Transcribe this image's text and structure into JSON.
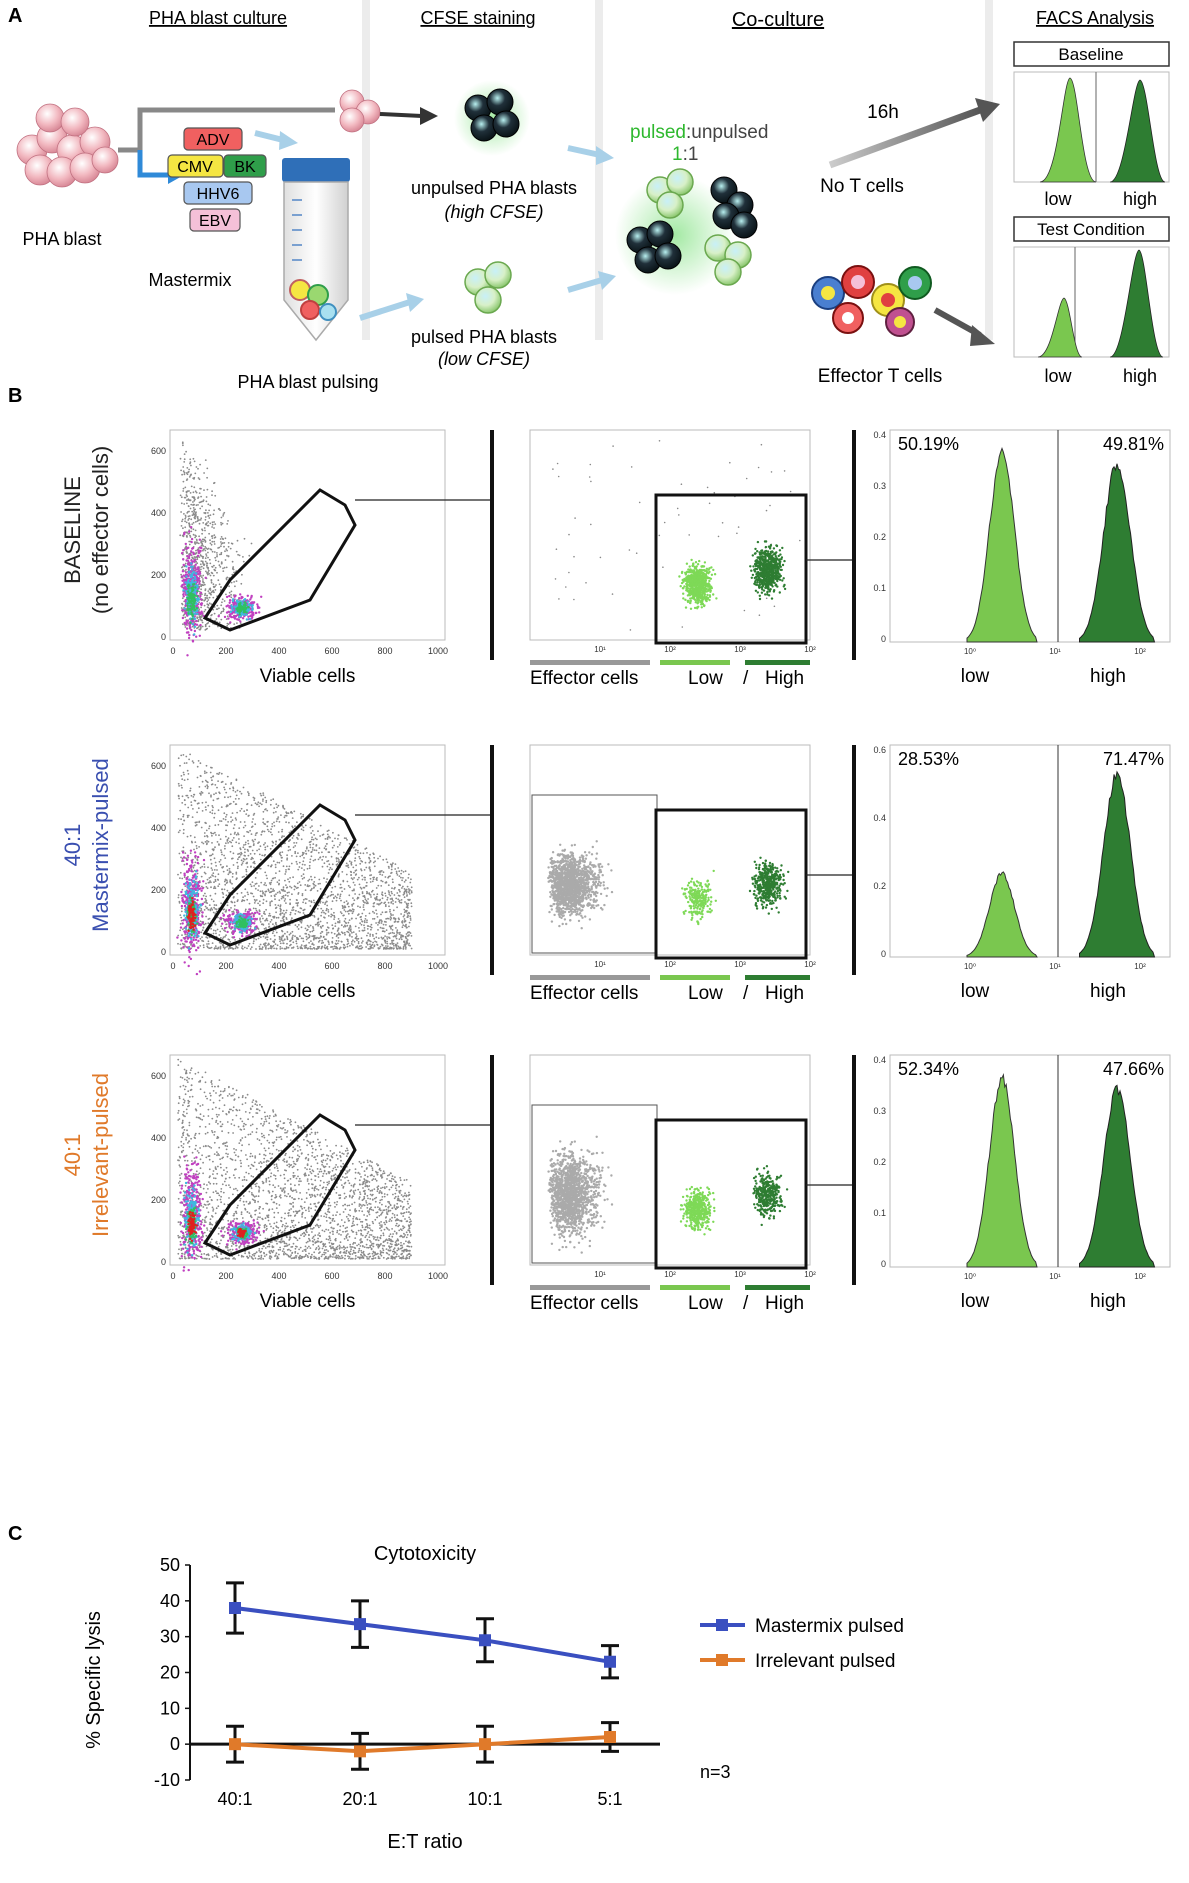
{
  "panelA": {
    "label": "A",
    "headers": [
      "PHA blast culture",
      "CFSE staining",
      "Co-culture",
      "FACS Analysis"
    ],
    "pha_blast": "PHA blast",
    "mastermix": "Mastermix",
    "viruses": [
      "ADV",
      "CMV",
      "BK",
      "HHV6",
      "EBV"
    ],
    "pulsing": "PHA blast pulsing",
    "unpulsed_line1": "unpulsed PHA blasts",
    "unpulsed_line2": "(high CFSE)",
    "pulsed_line1": "pulsed PHA blasts",
    "pulsed_line2": "(low CFSE)",
    "ratio_pulsed": "pulsed",
    "ratio_unpulsed": ":unpulsed",
    "ratio_one": "1",
    "ratio_rest": ":1",
    "time": "16h",
    "no_t": "No T cells",
    "effector": "Effector T cells",
    "baseline_box": "Baseline",
    "test_box": "Test Condition",
    "low": "low",
    "high": "high",
    "colors": {
      "pulsed": "#2eb82e",
      "adv": "#f06060",
      "cmv": "#f5e642",
      "bk": "#2f9e4a",
      "hhv6": "#a8c8f0",
      "ebv": "#f5c0d8"
    }
  },
  "panelB": {
    "label": "B",
    "rows": [
      {
        "title1": "BASELINE",
        "title2": "(no effector cells)",
        "color": "#222222",
        "pct_low": "50.19%",
        "pct_high": "49.81%"
      },
      {
        "title1": "40:1",
        "title2": "Mastermix-pulsed",
        "color": "#3a4fb0",
        "pct_low": "28.53%",
        "pct_high": "71.47%"
      },
      {
        "title1": "40:1",
        "title2": "Irrelevant-pulsed",
        "color": "#e07a2a",
        "pct_low": "52.34%",
        "pct_high": "47.66%"
      }
    ],
    "scatter_xlabel": "Viable cells",
    "scatter_ticks_x": [
      "0",
      "200",
      "400",
      "600",
      "800",
      "1000"
    ],
    "scatter_ticks_y": [
      "0",
      "200",
      "400",
      "600"
    ],
    "cfse_labels": {
      "effector": "Effector cells",
      "low": "Low",
      "slash": "/",
      "high": "High"
    },
    "cfse_ticks": [
      "10¹",
      "10²",
      "10³",
      "10²"
    ],
    "hist_xlabels": [
      "low",
      "high"
    ],
    "hist_ticks_row1": [
      "0.4",
      "0.3",
      "0.2",
      "0.1",
      "0"
    ],
    "hist_ticks_row2": [
      "0.6",
      "0.4",
      "0.2",
      "0"
    ],
    "hist_ticks_row3": [
      "0.4",
      "0.3",
      "0.2",
      "0.1",
      "0"
    ],
    "hist_xticks": [
      "10⁰",
      "10¹",
      "10²"
    ]
  },
  "panelC": {
    "label": "C",
    "note": "n=3",
    "chart_data": {
      "type": "line",
      "title": "Cytotoxicity",
      "xlabel": "E:T ratio",
      "ylabel": "% Specific lysis",
      "categories": [
        "40:1",
        "20:1",
        "10:1",
        "5:1"
      ],
      "ylim": [
        -10,
        50
      ],
      "yticks": [
        "50",
        "40",
        "30",
        "20",
        "10",
        "0",
        "-10"
      ],
      "series": [
        {
          "name": "Mastermix pulsed",
          "color": "#3a4fc0",
          "values": [
            38,
            33.5,
            29,
            23
          ],
          "errors": [
            7,
            6.5,
            6,
            4.5
          ]
        },
        {
          "name": "Irrelevant pulsed",
          "color": "#e07a2a",
          "values": [
            0,
            -2,
            0,
            2
          ],
          "errors": [
            5,
            5,
            5,
            4
          ]
        }
      ]
    }
  }
}
